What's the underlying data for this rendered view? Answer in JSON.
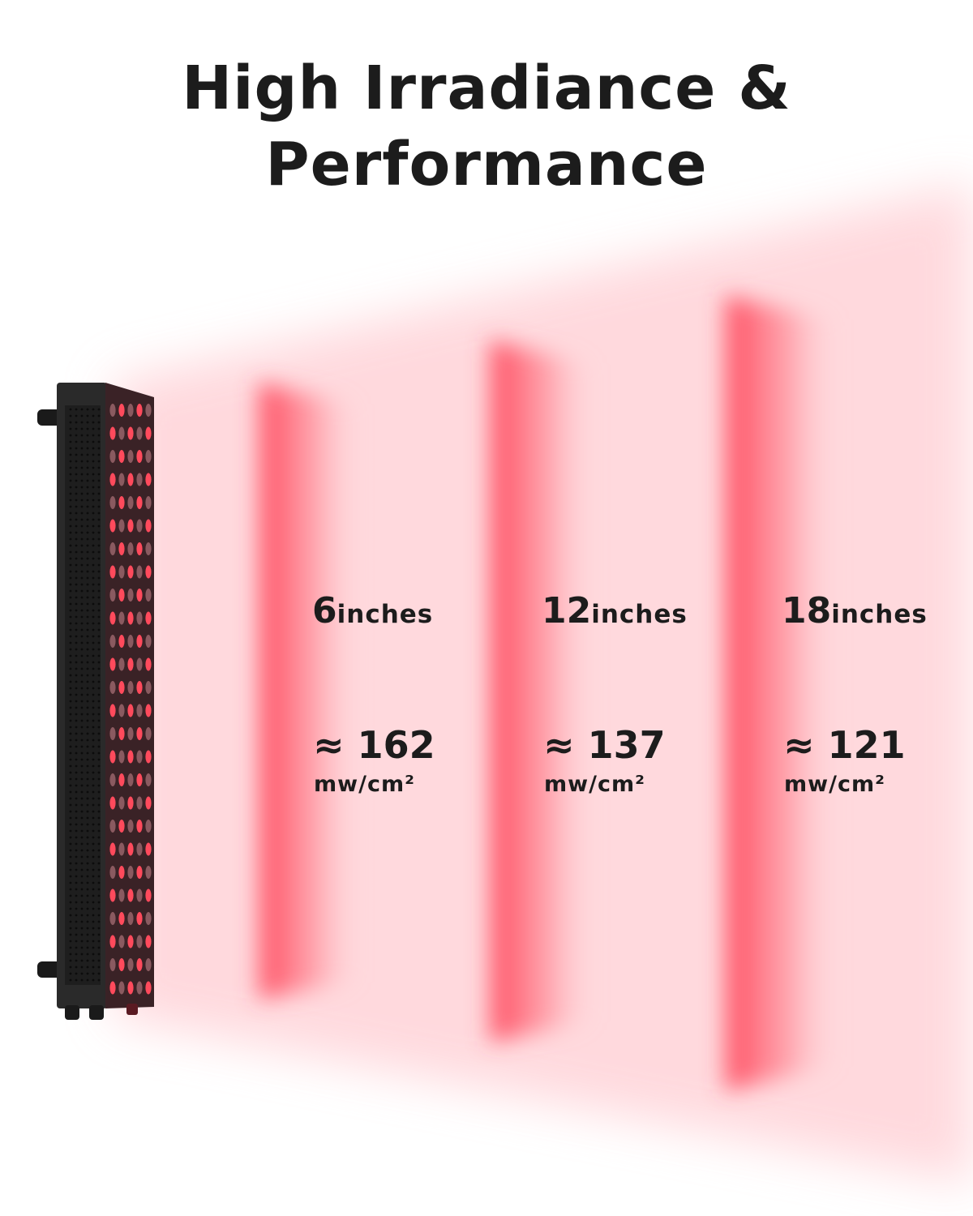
{
  "title_line1": "High Irradiance &",
  "title_line2": "Performance",
  "measurements": [
    {
      "distance": "6",
      "distance_unit": "inches",
      "approx": "≈",
      "irradiance": "162",
      "irradiance_unit": "mw/cm²"
    },
    {
      "distance": "12",
      "distance_unit": "inches",
      "approx": "≈",
      "irradiance": "137",
      "irradiance_unit": "mw/cm²"
    },
    {
      "distance": "18",
      "distance_unit": "inches",
      "approx": "≈",
      "irradiance": "121",
      "irradiance_unit": "mw/cm²"
    }
  ],
  "colors": {
    "light": "#ff3b50",
    "beam": "#ffd3d8",
    "panel": "#262626",
    "text": "#1c1c1c"
  }
}
